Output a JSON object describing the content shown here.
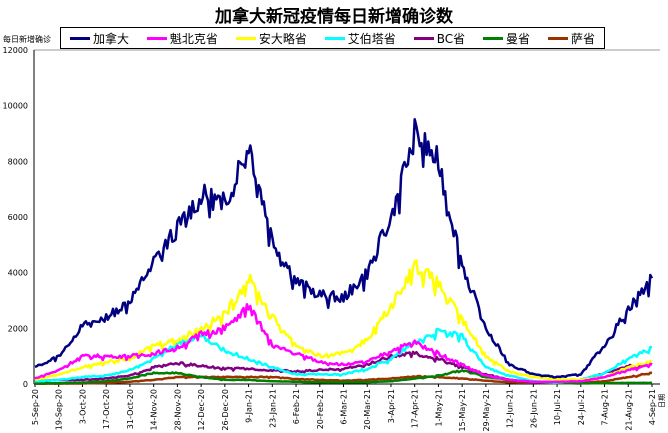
{
  "title": "加拿大新冠疫情每日新增确诊数",
  "chart_data": {
    "type": "line",
    "title": "加拿大新冠疫情每日新增确诊数",
    "ylabel": "每日新增确诊",
    "xlabel": "日期",
    "ylim": [
      0,
      12000
    ],
    "yticks": [
      0,
      2000,
      4000,
      6000,
      8000,
      10000,
      12000
    ],
    "legend_placement": "top",
    "categories": [
      "5-Sep-20",
      "19-Sep-20",
      "3-Oct-20",
      "17-Oct-20",
      "31-Oct-20",
      "14-Nov-20",
      "28-Nov-20",
      "12-Dec-20",
      "26-Dec-20",
      "9-Jan-21",
      "23-Jan-21",
      "6-Feb-21",
      "20-Feb-21",
      "6-Mar-21",
      "20-Mar-21",
      "3-Apr-21",
      "17-Apr-21",
      "1-May-21",
      "15-May-21",
      "29-May-21",
      "12-Jun-21",
      "26-Jun-21",
      "10-Jul-21",
      "24-Jul-21",
      "7-Aug-21",
      "21-Aug-21",
      "4-Sep-21"
    ],
    "series": [
      {
        "name": "加拿大",
        "color": "#000080",
        "values": [
          600,
          1000,
          2100,
          2400,
          3000,
          4400,
          5600,
          6800,
          6500,
          8700,
          5200,
          3700,
          3200,
          3100,
          4000,
          6000,
          9000,
          8000,
          4300,
          2000,
          700,
          350,
          250,
          350,
          1400,
          2700,
          3800
        ]
      },
      {
        "name": "魁北克省",
        "color": "#ff00ff",
        "values": [
          200,
          500,
          1000,
          1000,
          1000,
          1100,
          1300,
          1800,
          2000,
          2800,
          1400,
          1100,
          800,
          700,
          800,
          1200,
          1500,
          1100,
          700,
          300,
          150,
          80,
          80,
          100,
          250,
          500,
          700
        ]
      },
      {
        "name": "安大略省",
        "color": "#ffff00",
        "values": [
          150,
          350,
          600,
          800,
          900,
          1400,
          1600,
          2000,
          2500,
          3800,
          2400,
          1400,
          1000,
          1100,
          1600,
          2800,
          4300,
          3600,
          2300,
          1000,
          450,
          250,
          170,
          150,
          250,
          600,
          800
        ]
      },
      {
        "name": "艾伯塔省",
        "color": "#00ffff",
        "values": [
          100,
          150,
          250,
          300,
          500,
          900,
          1500,
          1700,
          1200,
          900,
          600,
          350,
          350,
          350,
          550,
          900,
          1500,
          1900,
          1700,
          600,
          300,
          100,
          50,
          150,
          400,
          900,
          1300
        ]
      },
      {
        "name": "BC省",
        "color": "#800080",
        "values": [
          100,
          150,
          150,
          200,
          300,
          600,
          750,
          650,
          550,
          550,
          500,
          450,
          500,
          550,
          700,
          1000,
          1100,
          900,
          600,
          350,
          150,
          60,
          60,
          150,
          400,
          650,
          700
        ]
      },
      {
        "name": "曼省",
        "color": "#008000",
        "values": [
          20,
          30,
          50,
          100,
          200,
          400,
          400,
          250,
          150,
          150,
          100,
          80,
          60,
          60,
          70,
          100,
          200,
          300,
          500,
          250,
          150,
          50,
          30,
          20,
          30,
          40,
          40
        ]
      },
      {
        "name": "萨省",
        "color": "#993300",
        "values": [
          10,
          15,
          20,
          40,
          80,
          150,
          250,
          250,
          250,
          250,
          250,
          180,
          150,
          120,
          150,
          200,
          280,
          250,
          200,
          120,
          60,
          40,
          30,
          50,
          100,
          250,
          400
        ]
      }
    ]
  }
}
